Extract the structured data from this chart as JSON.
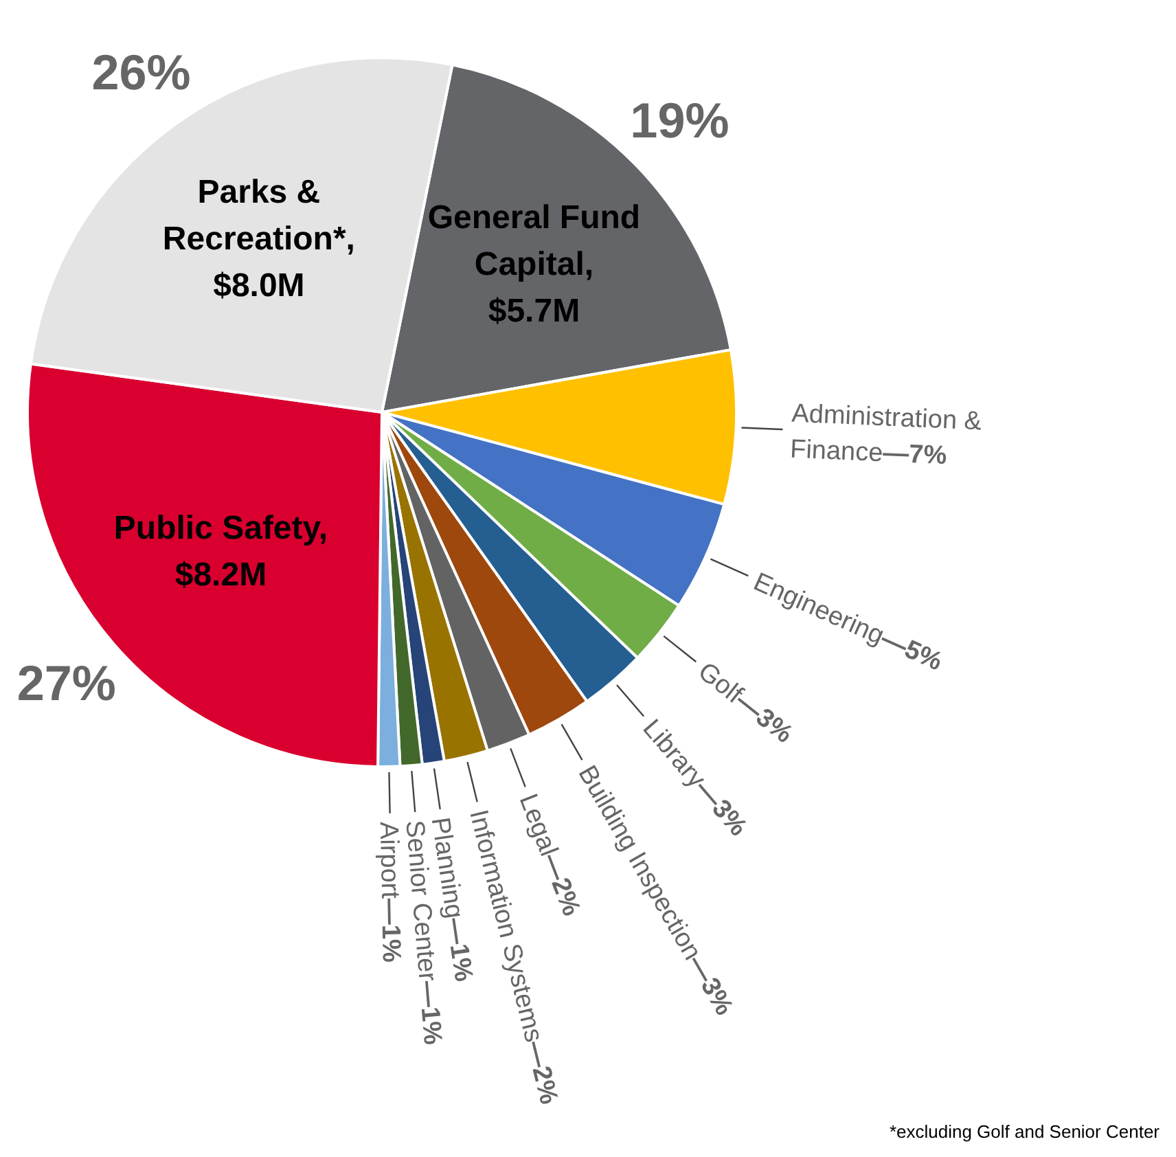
{
  "chart_data": {
    "type": "pie",
    "categories": [
      "General Fund Capital, $5.7M",
      "Administration & Finance",
      "Engineering",
      "Golf",
      "Library",
      "Building Inspection",
      "Legal",
      "Information Systems",
      "Planning",
      "Senior Center",
      "Airport",
      "Public Safety, $8.2M",
      "Parks & Recreation*, $8.0M"
    ],
    "values": [
      19,
      7,
      5,
      3,
      3,
      3,
      2,
      2,
      1,
      1,
      1,
      27,
      26
    ],
    "value_labels": [
      "19%",
      "—7%",
      "—5%",
      "—3%",
      "—3%",
      "—3%",
      "—2%",
      "—2%",
      "—1%",
      "—1%",
      "—1%",
      "27%",
      "26%"
    ],
    "colors": [
      "#646569",
      "#ffc000",
      "#4472c4",
      "#70ad47",
      "#255e91",
      "#9e480e",
      "#636363",
      "#997300",
      "#264478",
      "#43682b",
      "#7cafdd",
      "#d9002f",
      "#e4e4e4"
    ],
    "annotations": [
      "*excluding Golf and Senior Center"
    ]
  }
}
